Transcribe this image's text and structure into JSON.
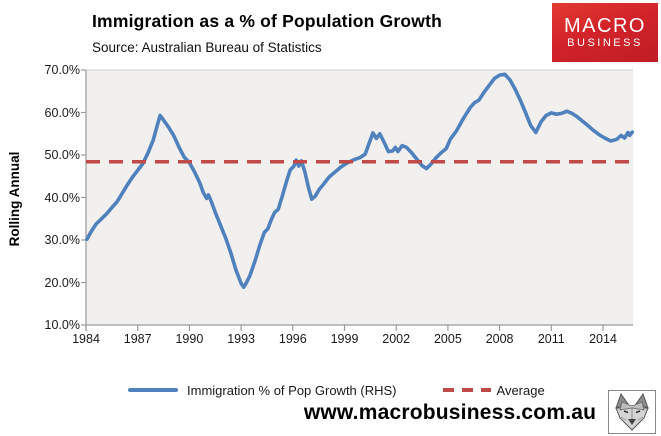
{
  "header": {
    "title": "Immigration as a % of Population Growth",
    "subtitle": "Source: Australian Bureau of Statistics",
    "logo": {
      "line1": "MACRO",
      "line2": "BUSINESS",
      "bg_color": "#d2232a"
    }
  },
  "chart_data": {
    "type": "line",
    "title": "Immigration as a % of Population Growth",
    "subtitle": "Source: Australian Bureau of Statistics",
    "ylabel": "Rolling Annual",
    "xlabel": "",
    "ylim": [
      10,
      70
    ],
    "xlim": [
      1984,
      2015.75
    ],
    "grid": false,
    "legend_position": "bottom",
    "plot_bg_color": "#f1f0ee",
    "axis_color": "#9b9b9b",
    "y_ticks": [
      "70.0%",
      "60.0%",
      "50.0%",
      "40.0%",
      "30.0%",
      "20.0%",
      "10.0%"
    ],
    "y_tick_values": [
      70,
      60,
      50,
      40,
      30,
      20,
      10
    ],
    "x_ticks": [
      "1984",
      "1987",
      "1990",
      "1993",
      "1996",
      "1999",
      "2002",
      "2005",
      "2008",
      "2011",
      "2014"
    ],
    "x_tick_values": [
      1984,
      1987,
      1990,
      1993,
      1996,
      1999,
      2002,
      2005,
      2008,
      2011,
      2014
    ],
    "series": [
      {
        "name": "Immigration % of Pop Growth (RHS)",
        "color": "#4f81bd",
        "style": "solid",
        "points": [
          [
            1984.05,
            30.2
          ],
          [
            1984.3,
            32.0
          ],
          [
            1984.6,
            33.8
          ],
          [
            1984.9,
            35.0
          ],
          [
            1985.2,
            36.2
          ],
          [
            1985.5,
            37.6
          ],
          [
            1985.8,
            39.0
          ],
          [
            1986.1,
            41.0
          ],
          [
            1986.4,
            43.0
          ],
          [
            1986.7,
            44.8
          ],
          [
            1987.0,
            46.4
          ],
          [
            1987.3,
            48.0
          ],
          [
            1987.6,
            50.5
          ],
          [
            1987.9,
            53.5
          ],
          [
            1988.1,
            56.5
          ],
          [
            1988.3,
            59.3
          ],
          [
            1988.5,
            58.2
          ],
          [
            1988.8,
            56.5
          ],
          [
            1989.1,
            54.5
          ],
          [
            1989.4,
            51.8
          ],
          [
            1989.7,
            49.5
          ],
          [
            1990.0,
            48.2
          ],
          [
            1990.3,
            46.0
          ],
          [
            1990.6,
            43.5
          ],
          [
            1990.8,
            41.2
          ],
          [
            1991.0,
            39.8
          ],
          [
            1991.1,
            40.6
          ],
          [
            1991.25,
            39.3
          ],
          [
            1991.5,
            36.5
          ],
          [
            1991.8,
            33.5
          ],
          [
            1992.1,
            30.5
          ],
          [
            1992.4,
            27.0
          ],
          [
            1992.7,
            23.0
          ],
          [
            1993.0,
            19.8
          ],
          [
            1993.15,
            18.9
          ],
          [
            1993.3,
            19.9
          ],
          [
            1993.5,
            21.5
          ],
          [
            1993.8,
            25.0
          ],
          [
            1994.1,
            29.0
          ],
          [
            1994.35,
            31.8
          ],
          [
            1994.55,
            32.6
          ],
          [
            1994.75,
            34.8
          ],
          [
            1994.95,
            36.5
          ],
          [
            1995.15,
            37.2
          ],
          [
            1995.4,
            40.5
          ],
          [
            1995.65,
            44.0
          ],
          [
            1995.85,
            46.5
          ],
          [
            1996.05,
            47.3
          ],
          [
            1996.2,
            48.8
          ],
          [
            1996.35,
            47.4
          ],
          [
            1996.5,
            48.6
          ],
          [
            1996.7,
            46.0
          ],
          [
            1996.9,
            42.5
          ],
          [
            1997.1,
            39.6
          ],
          [
            1997.3,
            40.3
          ],
          [
            1997.55,
            42.0
          ],
          [
            1997.8,
            43.2
          ],
          [
            1998.1,
            44.8
          ],
          [
            1998.45,
            46.0
          ],
          [
            1998.8,
            47.2
          ],
          [
            1999.1,
            48.0
          ],
          [
            1999.5,
            48.8
          ],
          [
            1999.9,
            49.4
          ],
          [
            2000.2,
            50.2
          ],
          [
            2000.45,
            53.0
          ],
          [
            2000.65,
            55.2
          ],
          [
            2000.85,
            53.9
          ],
          [
            2001.05,
            55.0
          ],
          [
            2001.3,
            53.0
          ],
          [
            2001.55,
            50.8
          ],
          [
            2001.8,
            51.0
          ],
          [
            2001.95,
            51.8
          ],
          [
            2002.1,
            50.8
          ],
          [
            2002.35,
            52.2
          ],
          [
            2002.6,
            51.8
          ],
          [
            2002.9,
            50.5
          ],
          [
            2003.2,
            49.0
          ],
          [
            2003.5,
            47.5
          ],
          [
            2003.75,
            46.8
          ],
          [
            2004.0,
            47.8
          ],
          [
            2004.3,
            49.3
          ],
          [
            2004.6,
            50.5
          ],
          [
            2004.9,
            51.5
          ],
          [
            2005.15,
            53.8
          ],
          [
            2005.5,
            55.7
          ],
          [
            2005.9,
            58.6
          ],
          [
            2006.3,
            61.2
          ],
          [
            2006.55,
            62.3
          ],
          [
            2006.8,
            62.9
          ],
          [
            2007.1,
            64.8
          ],
          [
            2007.4,
            66.4
          ],
          [
            2007.7,
            68.0
          ],
          [
            2008.0,
            68.8
          ],
          [
            2008.3,
            69.0
          ],
          [
            2008.6,
            67.7
          ],
          [
            2008.9,
            65.5
          ],
          [
            2009.2,
            62.9
          ],
          [
            2009.5,
            60.0
          ],
          [
            2009.8,
            57.0
          ],
          [
            2010.1,
            55.3
          ],
          [
            2010.4,
            57.8
          ],
          [
            2010.7,
            59.3
          ],
          [
            2011.0,
            59.9
          ],
          [
            2011.3,
            59.6
          ],
          [
            2011.6,
            59.8
          ],
          [
            2011.9,
            60.3
          ],
          [
            2012.2,
            59.8
          ],
          [
            2012.5,
            59.0
          ],
          [
            2012.8,
            58.0
          ],
          [
            2013.1,
            57.0
          ],
          [
            2013.45,
            55.8
          ],
          [
            2013.8,
            54.7
          ],
          [
            2014.1,
            54.0
          ],
          [
            2014.45,
            53.3
          ],
          [
            2014.8,
            53.7
          ],
          [
            2015.05,
            54.6
          ],
          [
            2015.25,
            54.0
          ],
          [
            2015.45,
            55.3
          ],
          [
            2015.55,
            54.6
          ],
          [
            2015.7,
            55.4
          ]
        ]
      },
      {
        "name": "Average",
        "color": "#bf4a47",
        "style": "dashed",
        "average_value": 48.4
      }
    ]
  },
  "legend": {
    "series1_label": "Immigration % of Pop Growth (RHS)",
    "series2_label": "Average"
  },
  "footer": {
    "url": "www.macrobusiness.com.au",
    "wolf_icon": "wolf-logo"
  },
  "colors": {
    "line_blue": "#4f81bd",
    "average_red": "#bf4a47",
    "logo_red": "#d2232a",
    "plot_background": "#f1f0ee",
    "axis_gray": "#9b9b9b"
  }
}
